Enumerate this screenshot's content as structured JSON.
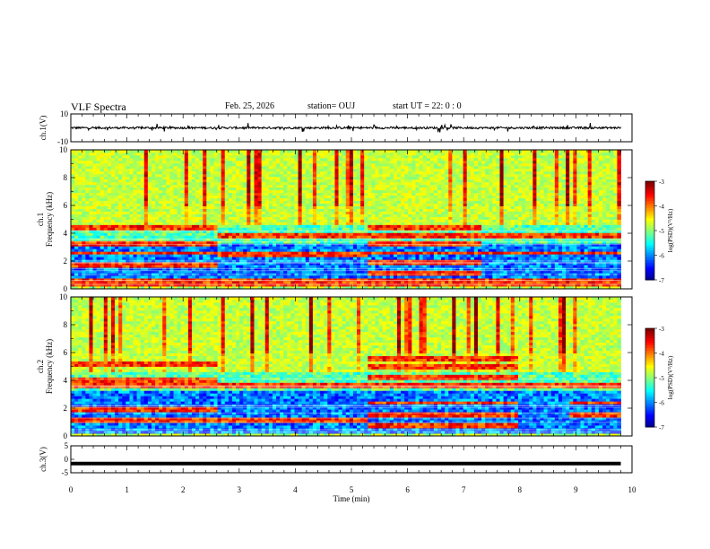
{
  "header": {
    "title": "VLF Spectra",
    "date": "Feb. 25, 2026",
    "station": "station= OUJ",
    "start": "start  UT =   22: 0  : 0"
  },
  "chart_data": [
    {
      "type": "line",
      "panel": "ch1-waveform",
      "ylabel": "ch.1(V)",
      "ylim": [
        -10,
        10
      ],
      "yticks": [
        "10",
        "-10"
      ],
      "xlim": [
        0,
        10
      ],
      "baseline": 0,
      "noise_amplitude": 1.5
    },
    {
      "type": "heatmap",
      "panel": "ch1-spectrogram",
      "ylabel_top": "ch.1",
      "ylabel": "Frequency (kHz)",
      "ylim": [
        0,
        10
      ],
      "yticks": [
        "0",
        "2",
        "4",
        "6",
        "8",
        "10"
      ],
      "xlim": [
        0,
        10
      ],
      "colorbar": {
        "label": "log(PSD)(V²/Hz)",
        "range": [
          -7,
          -3
        ],
        "ticks": [
          "-3",
          "-4",
          "-5",
          "-6",
          "-7"
        ]
      },
      "regimes": [
        {
          "t_start": 0,
          "t_end": 2.6,
          "bands_khz": [
            0.3,
            0.6,
            1.8,
            2.6,
            3.2,
            4.4
          ]
        },
        {
          "t_start": 2.6,
          "t_end": 5.3,
          "bands_khz": [
            0.3,
            0.6,
            2.5,
            3.8
          ]
        },
        {
          "t_start": 5.3,
          "t_end": 7.3,
          "bands_khz": [
            0.3,
            0.6,
            1.2,
            1.9,
            2.6,
            3.2,
            3.8,
            4.5
          ]
        },
        {
          "t_start": 7.3,
          "t_end": 9.8,
          "bands_khz": [
            0.3,
            0.6,
            2.6,
            3.8
          ]
        }
      ]
    },
    {
      "type": "heatmap",
      "panel": "ch2-spectrogram",
      "ylabel_top": "ch.2",
      "ylabel": "Frequency (kHz)",
      "ylim": [
        0,
        10
      ],
      "yticks": [
        "0",
        "2",
        "4",
        "6",
        "8",
        "10"
      ],
      "xlim": [
        0,
        10
      ],
      "colorbar": {
        "label": "log(PSD)(V²/Hz)",
        "range": [
          -7,
          -3
        ],
        "ticks": [
          "-3",
          "-4",
          "-5",
          "-6",
          "-7"
        ]
      },
      "regimes": [
        {
          "t_start": 0,
          "t_end": 2.6,
          "bands_khz": [
            1.2,
            2.0,
            3.6,
            4.0,
            5.2
          ]
        },
        {
          "t_start": 2.6,
          "t_end": 5.3,
          "bands_khz": [
            1.2,
            3.6
          ]
        },
        {
          "t_start": 5.3,
          "t_end": 8.0,
          "bands_khz": [
            0.8,
            1.6,
            2.4,
            3.6,
            4.2,
            5.0,
            5.6
          ]
        },
        {
          "t_start": 8.0,
          "t_end": 8.9,
          "bands_khz": [
            3.6
          ]
        },
        {
          "t_start": 8.9,
          "t_end": 9.8,
          "bands_khz": [
            1.6,
            2.4,
            3.6
          ]
        }
      ]
    },
    {
      "type": "line",
      "panel": "ch3-waveform",
      "ylabel": "ch.3(V)",
      "ylim": [
        -5,
        5
      ],
      "yticks": [
        "5",
        "0",
        "-5"
      ],
      "xlim": [
        0,
        10
      ],
      "baseline": -1.6,
      "noise_amplitude": 0
    }
  ],
  "x_axis": {
    "label": "Time (min)",
    "ticks": [
      "0",
      "1",
      "2",
      "3",
      "4",
      "5",
      "6",
      "7",
      "8",
      "9",
      "10"
    ]
  },
  "data_end_min": 9.8
}
